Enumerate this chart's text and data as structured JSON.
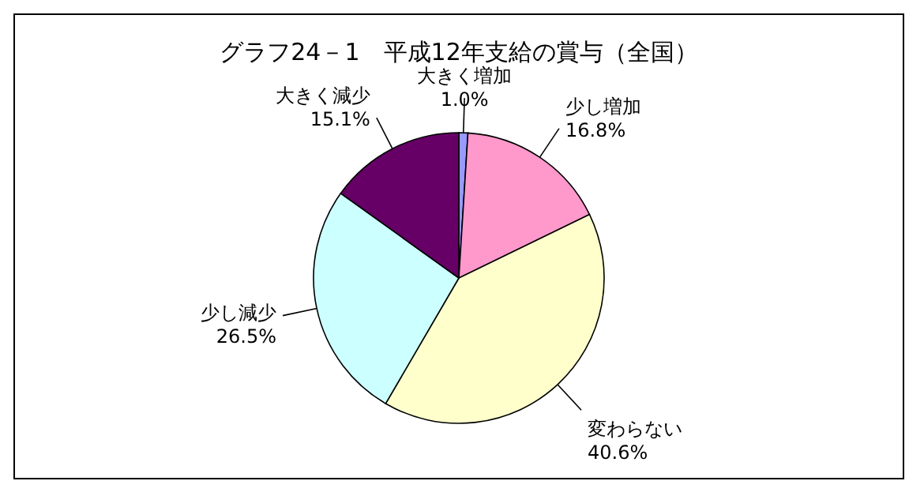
{
  "chart_data": {
    "type": "pie",
    "title": "グラフ24－1　平成12年支給の賞与（全国）",
    "categories": [
      "大きく増加",
      "少し増加",
      "変わらない",
      "少し減少",
      "大きく減少"
    ],
    "values": [
      1.0,
      16.8,
      40.6,
      26.5,
      15.1
    ],
    "value_labels": [
      "1.0%",
      "16.8%",
      "40.6%",
      "26.5%",
      "15.1%"
    ],
    "colors": [
      "#9999ff",
      "#ff99cc",
      "#ffffcc",
      "#ccffff",
      "#660066"
    ],
    "legend": false
  }
}
